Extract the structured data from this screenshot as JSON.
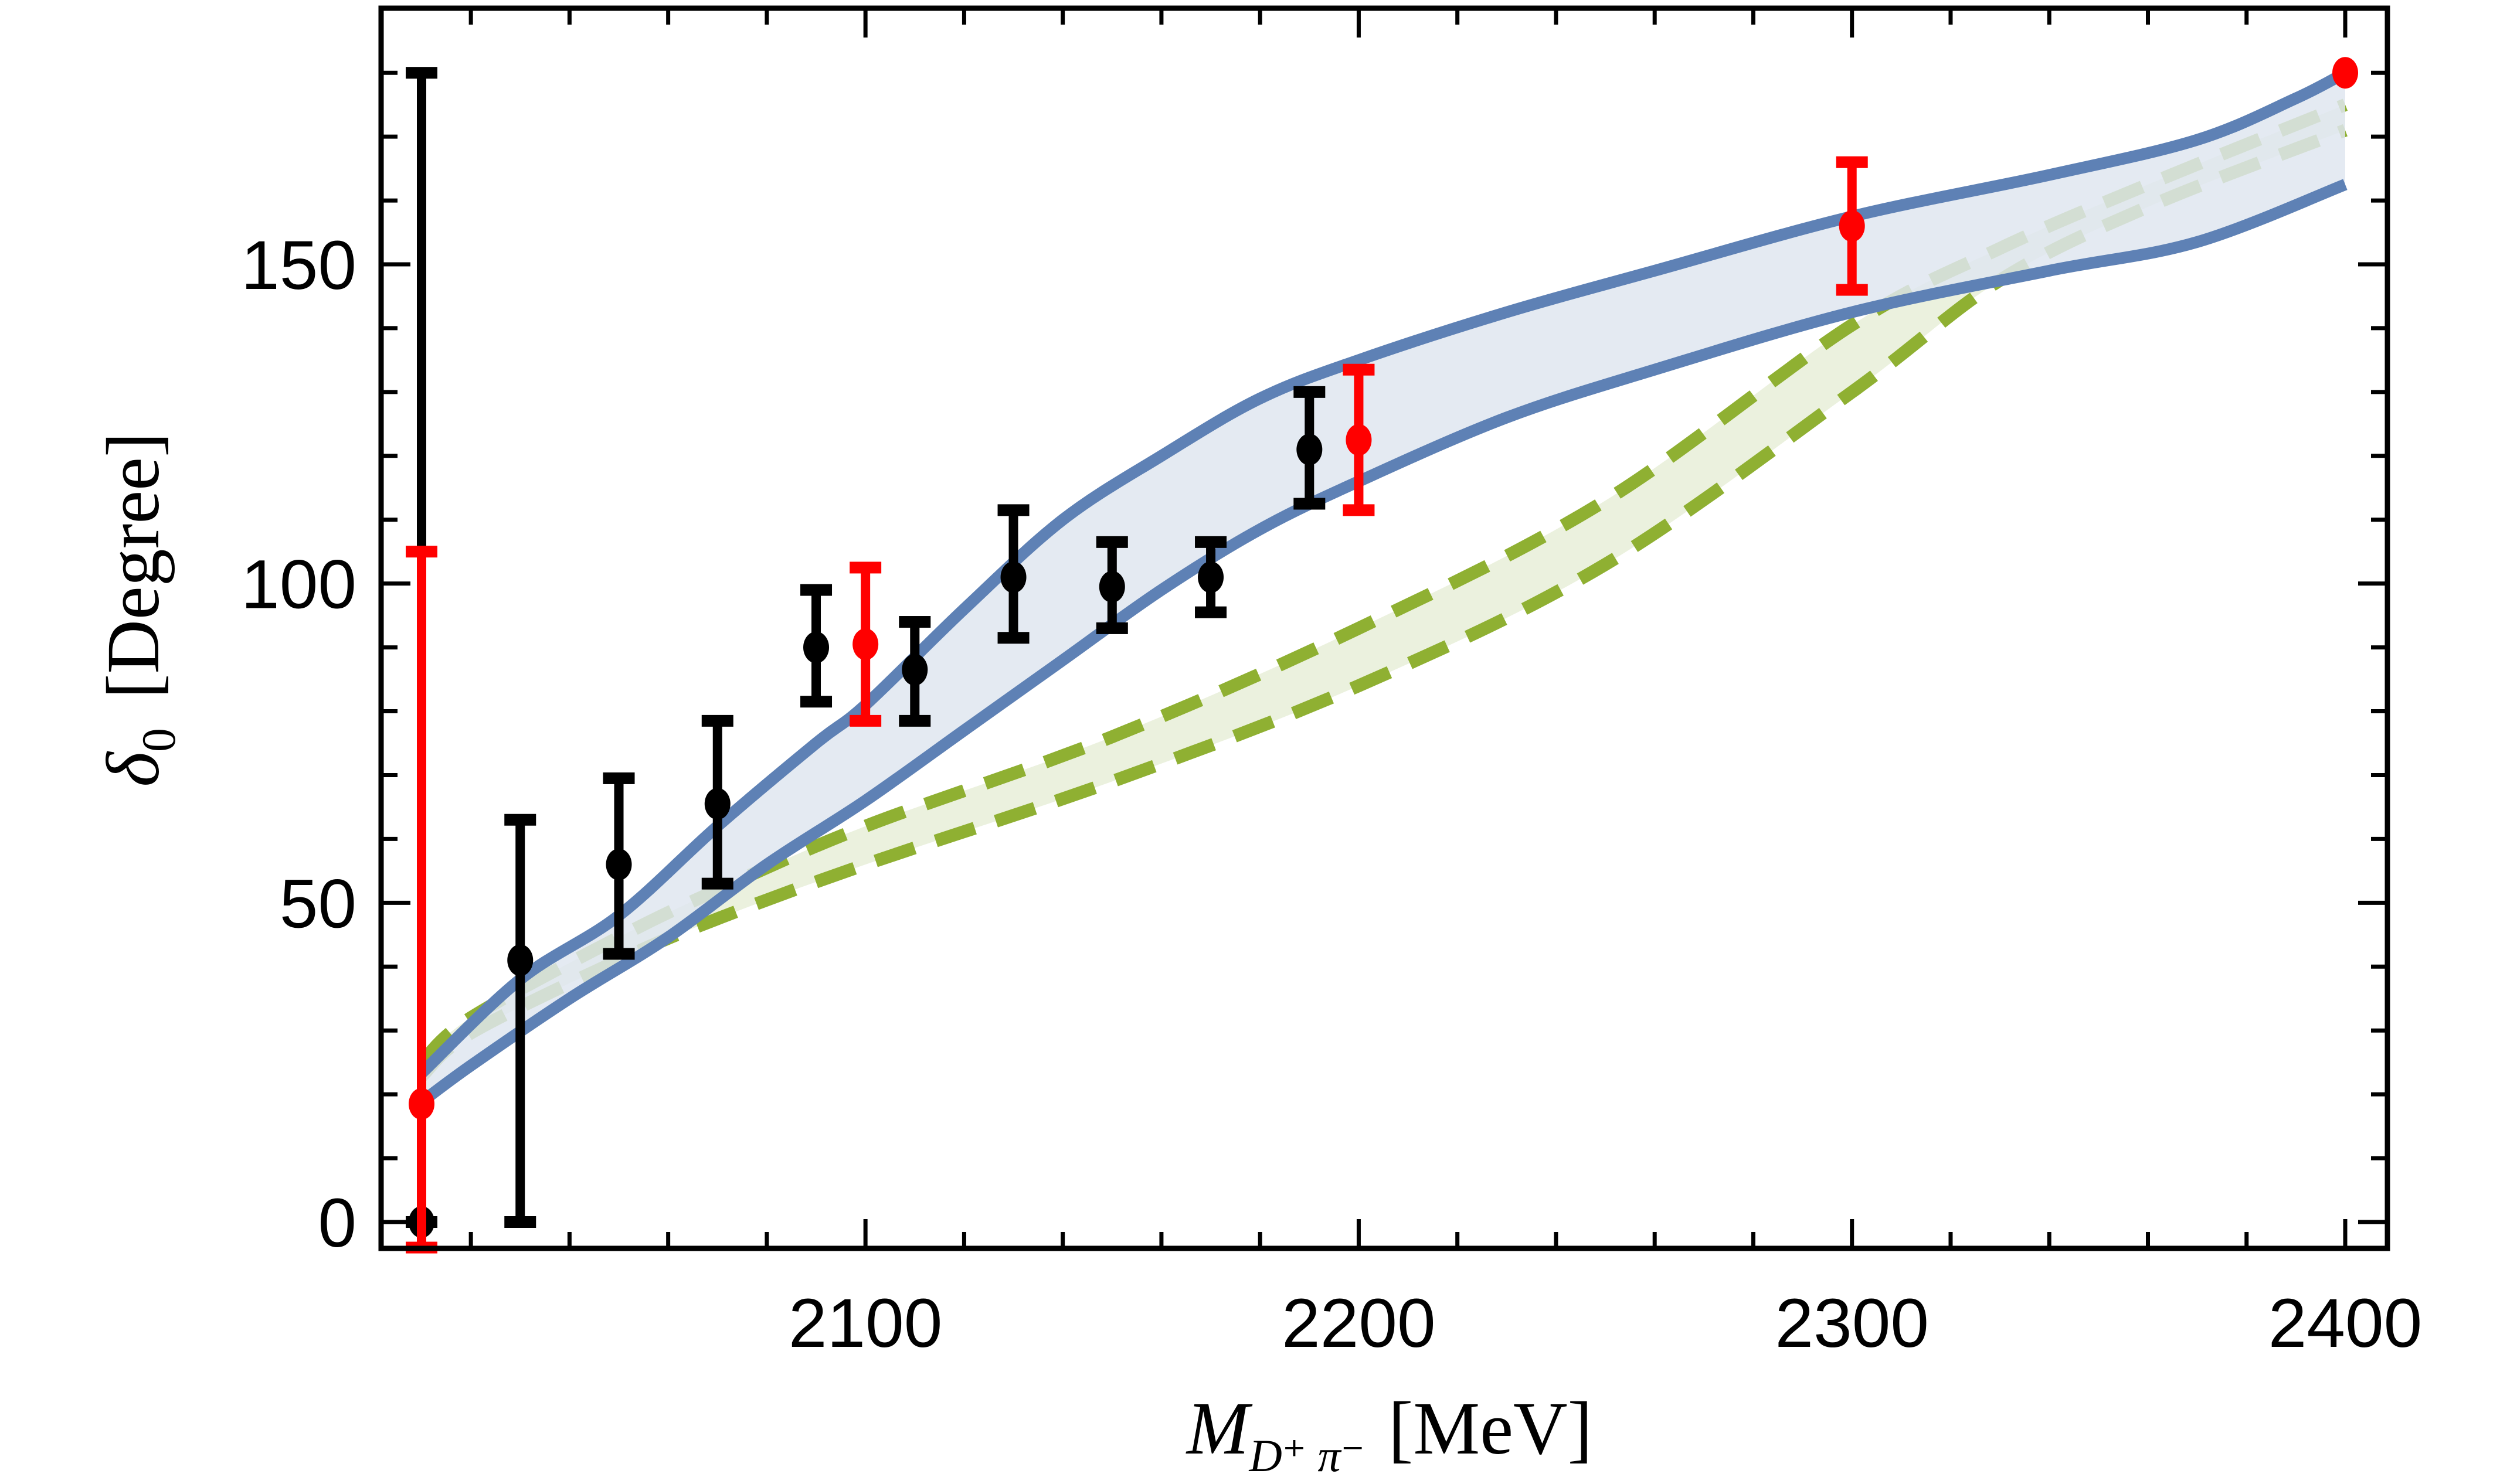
{
  "chart_data": {
    "type": "scatter",
    "title": "",
    "xlabel": {
      "main": "M",
      "sub": "D⁺ π⁻",
      "unit": "[MeV]"
    },
    "ylabel": {
      "main": "δ",
      "sub": "0",
      "unit": "[Degree]"
    },
    "xlim": [
      2002,
      2408
    ],
    "ylim": [
      -4,
      189
    ],
    "x_ticks": [
      2100,
      2200,
      2300,
      2400
    ],
    "x_tick_labels": [
      "2100",
      "2200",
      "2300",
      "2400"
    ],
    "x_minor_step": 20,
    "y_ticks": [
      0,
      50,
      100,
      150
    ],
    "y_tick_labels": [
      "0",
      "50",
      "100",
      "150"
    ],
    "y_minor_step": 10,
    "grid": false,
    "legend": "none",
    "colors": {
      "black_points": "#000000",
      "red_points": "#ff0000",
      "blue_band_line": "#5e81b5",
      "blue_band_fill": "#dfe6f0",
      "green_band_line": "#8fb032",
      "green_band_fill": "#e6eed6"
    },
    "series": [
      {
        "name": "black-data",
        "kind": "errorbar-points",
        "color": "#000000",
        "points": [
          {
            "x": 2010,
            "y": 0,
            "ylo": 0,
            "yhi": 180
          },
          {
            "x": 2030,
            "y": 41,
            "ylo": 0,
            "yhi": 63
          },
          {
            "x": 2050,
            "y": 56,
            "ylo": 42,
            "yhi": 69.5
          },
          {
            "x": 2070,
            "y": 65.5,
            "ylo": 53,
            "yhi": 78.5
          },
          {
            "x": 2090,
            "y": 90,
            "ylo": 81.5,
            "yhi": 99
          },
          {
            "x": 2110,
            "y": 86.5,
            "ylo": 78.5,
            "yhi": 94
          },
          {
            "x": 2130,
            "y": 101,
            "ylo": 91.5,
            "yhi": 111.5
          },
          {
            "x": 2150,
            "y": 99.5,
            "ylo": 93,
            "yhi": 106.5
          },
          {
            "x": 2170,
            "y": 101,
            "ylo": 95.5,
            "yhi": 106.5
          },
          {
            "x": 2190,
            "y": 121,
            "ylo": 112.5,
            "yhi": 130
          }
        ]
      },
      {
        "name": "red-data",
        "kind": "errorbar-points",
        "color": "#ff0000",
        "points": [
          {
            "x": 2010,
            "y": 18.5,
            "ylo": -4,
            "yhi": 105
          },
          {
            "x": 2100,
            "y": 90.5,
            "ylo": 78.5,
            "yhi": 102.5
          },
          {
            "x": 2200,
            "y": 122.5,
            "ylo": 111.5,
            "yhi": 133.5
          },
          {
            "x": 2300,
            "y": 156,
            "ylo": 146,
            "yhi": 166
          },
          {
            "x": 2400,
            "y": 180,
            "ylo": 180,
            "yhi": 180
          }
        ]
      },
      {
        "name": "blue-band",
        "kind": "band",
        "line_style": "solid",
        "upper": {
          "x": [
            2010,
            2030,
            2050,
            2070,
            2090,
            2100,
            2120,
            2140,
            2160,
            2180,
            2200,
            2230,
            2260,
            2300,
            2340,
            2370,
            2390,
            2400
          ],
          "y": [
            23.3,
            38,
            48,
            62,
            75,
            81,
            96,
            110,
            120,
            129,
            135,
            142.5,
            149,
            157.5,
            164,
            169.5,
            176,
            180
          ]
        },
        "lower": {
          "x": [
            2010,
            2020,
            2040,
            2060,
            2080,
            2100,
            2120,
            2140,
            2160,
            2180,
            2200,
            2230,
            2260,
            2300,
            2340,
            2370,
            2400
          ],
          "y": [
            18.8,
            24.5,
            35,
            44.6,
            56,
            66,
            77,
            88,
            99,
            108.5,
            116,
            126,
            133.5,
            142.5,
            149,
            153.5,
            162.5
          ]
        }
      },
      {
        "name": "green-band",
        "kind": "band",
        "line_style": "dashed",
        "upper": {
          "x": [
            2010,
            2020,
            2050,
            2070,
            2100,
            2150,
            2200,
            2250,
            2300,
            2330,
            2360,
            2400
          ],
          "y": [
            25,
            32,
            44.6,
            52,
            62,
            76,
            93,
            113,
            140.5,
            152.5,
            162.5,
            175
          ]
        },
        "lower": {
          "x": [
            2010,
            2020,
            2050,
            2070,
            2100,
            2150,
            2200,
            2250,
            2300,
            2330,
            2360,
            2400
          ],
          "y": [
            22.8,
            29.6,
            41,
            47.5,
            56,
            69,
            84,
            103,
            130,
            147.5,
            159,
            171
          ]
        }
      }
    ]
  }
}
